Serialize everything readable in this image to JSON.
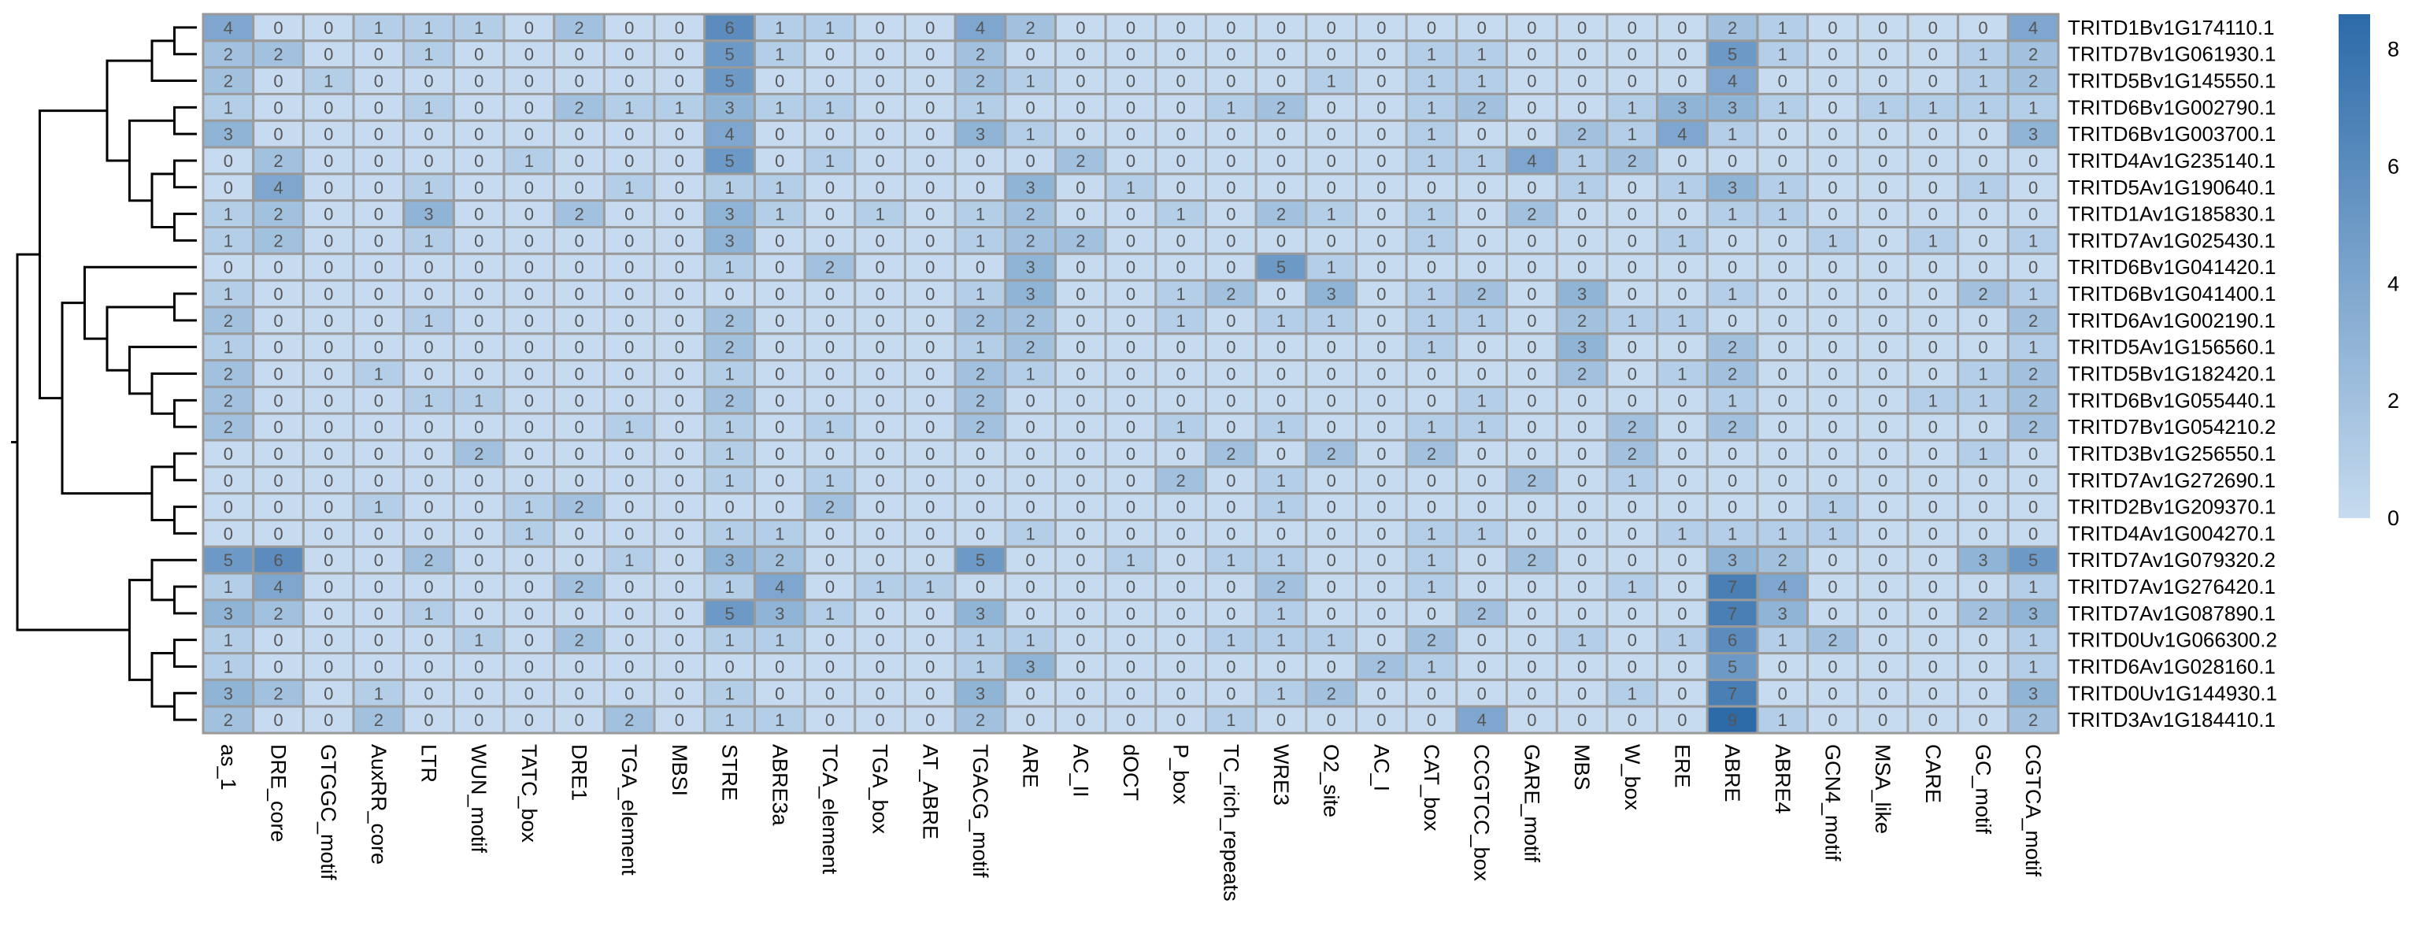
{
  "chart_data": {
    "type": "heatmap",
    "title": "",
    "xlabel": "",
    "ylabel": "",
    "rows": [
      "TRITD1Bv1G174110.1",
      "TRITD7Bv1G061930.1",
      "TRITD5Bv1G145550.1",
      "TRITD6Bv1G002790.1",
      "TRITD6Bv1G003700.1",
      "TRITD4Av1G235140.1",
      "TRITD5Av1G190640.1",
      "TRITD1Av1G185830.1",
      "TRITD7Av1G025430.1",
      "TRITD6Bv1G041420.1",
      "TRITD6Bv1G041400.1",
      "TRITD6Av1G002190.1",
      "TRITD5Av1G156560.1",
      "TRITD5Bv1G182420.1",
      "TRITD6Bv1G055440.1",
      "TRITD7Bv1G054210.2",
      "TRITD3Bv1G256550.1",
      "TRITD7Av1G272690.1",
      "TRITD2Bv1G209370.1",
      "TRITD4Av1G004270.1",
      "TRITD7Av1G079320.2",
      "TRITD7Av1G276420.1",
      "TRITD7Av1G087890.1",
      "TRITD0Uv1G066300.2",
      "TRITD6Av1G028160.1",
      "TRITD0Uv1G144930.1",
      "TRITD3Av1G184410.1"
    ],
    "columns": [
      "as_1",
      "DRE_core",
      "GTGGC_motif",
      "AuxRR_core",
      "LTR",
      "WUN_motif",
      "TATC_box",
      "DRE1",
      "TGA_element",
      "MBSI",
      "STRE",
      "ABRE3a",
      "TCA_element",
      "TGA_box",
      "AT_ABRE",
      "TGACG_motif",
      "ARE",
      "AC_II",
      "dOCT",
      "P_box",
      "TC_rich_repeats",
      "WRE3",
      "O2_site",
      "AC_I",
      "CAT_box",
      "CCGTCC_box",
      "GARE_motif",
      "MBS",
      "W_box",
      "ERE",
      "ABRE",
      "ABRE4",
      "GCN4_motif",
      "MSA_like",
      "CARE",
      "GC_motif",
      "CGTCA_motif"
    ],
    "values": [
      [
        4,
        0,
        0,
        1,
        1,
        1,
        0,
        2,
        0,
        0,
        6,
        1,
        1,
        0,
        0,
        4,
        2,
        0,
        0,
        0,
        0,
        0,
        0,
        0,
        0,
        0,
        0,
        0,
        0,
        0,
        2,
        1,
        0,
        0,
        0,
        0,
        4
      ],
      [
        2,
        2,
        0,
        0,
        1,
        0,
        0,
        0,
        0,
        0,
        5,
        1,
        0,
        0,
        0,
        2,
        0,
        0,
        0,
        0,
        0,
        0,
        0,
        0,
        1,
        1,
        0,
        0,
        0,
        0,
        5,
        1,
        0,
        0,
        0,
        1,
        2
      ],
      [
        2,
        0,
        1,
        0,
        0,
        0,
        0,
        0,
        0,
        0,
        5,
        0,
        0,
        0,
        0,
        2,
        1,
        0,
        0,
        0,
        0,
        0,
        1,
        0,
        1,
        1,
        0,
        0,
        0,
        0,
        4,
        0,
        0,
        0,
        0,
        1,
        2
      ],
      [
        1,
        0,
        0,
        0,
        1,
        0,
        0,
        2,
        1,
        1,
        3,
        1,
        1,
        0,
        0,
        1,
        0,
        0,
        0,
        0,
        1,
        2,
        0,
        0,
        1,
        2,
        0,
        0,
        1,
        3,
        3,
        1,
        0,
        1,
        1,
        1,
        1
      ],
      [
        3,
        0,
        0,
        0,
        0,
        0,
        0,
        0,
        0,
        0,
        4,
        0,
        0,
        0,
        0,
        3,
        1,
        0,
        0,
        0,
        0,
        0,
        0,
        0,
        1,
        0,
        0,
        2,
        1,
        4,
        1,
        0,
        0,
        0,
        0,
        0,
        3
      ],
      [
        0,
        2,
        0,
        0,
        0,
        0,
        1,
        0,
        0,
        0,
        5,
        0,
        1,
        0,
        0,
        0,
        0,
        2,
        0,
        0,
        0,
        0,
        0,
        0,
        1,
        1,
        4,
        1,
        2,
        0,
        0,
        0,
        0,
        0,
        0,
        0,
        0
      ],
      [
        0,
        4,
        0,
        0,
        1,
        0,
        0,
        0,
        1,
        0,
        1,
        1,
        0,
        0,
        0,
        0,
        3,
        0,
        1,
        0,
        0,
        0,
        0,
        0,
        0,
        0,
        0,
        1,
        0,
        1,
        3,
        1,
        0,
        0,
        0,
        1,
        0
      ],
      [
        1,
        2,
        0,
        0,
        3,
        0,
        0,
        2,
        0,
        0,
        3,
        1,
        0,
        1,
        0,
        1,
        2,
        0,
        0,
        1,
        0,
        2,
        1,
        0,
        1,
        0,
        2,
        0,
        0,
        0,
        1,
        1,
        0,
        0,
        0,
        0,
        0
      ],
      [
        1,
        2,
        0,
        0,
        1,
        0,
        0,
        0,
        0,
        0,
        3,
        0,
        0,
        0,
        0,
        1,
        2,
        2,
        0,
        0,
        0,
        0,
        0,
        0,
        1,
        0,
        0,
        0,
        0,
        1,
        0,
        0,
        1,
        0,
        1,
        0,
        1
      ],
      [
        0,
        0,
        0,
        0,
        0,
        0,
        0,
        0,
        0,
        0,
        1,
        0,
        2,
        0,
        0,
        0,
        3,
        0,
        0,
        0,
        0,
        5,
        1,
        0,
        0,
        0,
        0,
        0,
        0,
        0,
        0,
        0,
        0,
        0,
        0,
        0,
        0
      ],
      [
        1,
        0,
        0,
        0,
        0,
        0,
        0,
        0,
        0,
        0,
        0,
        0,
        0,
        0,
        0,
        1,
        3,
        0,
        0,
        1,
        2,
        0,
        3,
        0,
        1,
        2,
        0,
        3,
        0,
        0,
        1,
        0,
        0,
        0,
        0,
        2,
        1
      ],
      [
        2,
        0,
        0,
        0,
        1,
        0,
        0,
        0,
        0,
        0,
        2,
        0,
        0,
        0,
        0,
        2,
        2,
        0,
        0,
        1,
        0,
        1,
        1,
        0,
        1,
        1,
        0,
        2,
        1,
        1,
        0,
        0,
        0,
        0,
        0,
        0,
        2
      ],
      [
        1,
        0,
        0,
        0,
        0,
        0,
        0,
        0,
        0,
        0,
        2,
        0,
        0,
        0,
        0,
        1,
        2,
        0,
        0,
        0,
        0,
        0,
        0,
        0,
        1,
        0,
        0,
        3,
        0,
        0,
        2,
        0,
        0,
        0,
        0,
        0,
        1
      ],
      [
        2,
        0,
        0,
        1,
        0,
        0,
        0,
        0,
        0,
        0,
        1,
        0,
        0,
        0,
        0,
        2,
        1,
        0,
        0,
        0,
        0,
        0,
        0,
        0,
        0,
        0,
        0,
        2,
        0,
        1,
        2,
        0,
        0,
        0,
        0,
        1,
        2
      ],
      [
        2,
        0,
        0,
        0,
        1,
        1,
        0,
        0,
        0,
        0,
        2,
        0,
        0,
        0,
        0,
        2,
        0,
        0,
        0,
        0,
        0,
        0,
        0,
        0,
        0,
        1,
        0,
        0,
        0,
        0,
        1,
        0,
        0,
        0,
        1,
        1,
        2
      ],
      [
        2,
        0,
        0,
        0,
        0,
        0,
        0,
        0,
        1,
        0,
        1,
        0,
        1,
        0,
        0,
        2,
        0,
        0,
        0,
        1,
        0,
        1,
        0,
        0,
        1,
        1,
        0,
        0,
        2,
        0,
        2,
        0,
        0,
        0,
        0,
        0,
        2
      ],
      [
        0,
        0,
        0,
        0,
        0,
        2,
        0,
        0,
        0,
        0,
        1,
        0,
        0,
        0,
        0,
        0,
        0,
        0,
        0,
        0,
        2,
        0,
        2,
        0,
        2,
        0,
        0,
        0,
        2,
        0,
        0,
        0,
        0,
        0,
        0,
        1,
        0
      ],
      [
        0,
        0,
        0,
        0,
        0,
        0,
        0,
        0,
        0,
        0,
        1,
        0,
        1,
        0,
        0,
        0,
        0,
        0,
        0,
        2,
        0,
        1,
        0,
        0,
        0,
        0,
        2,
        0,
        1,
        0,
        0,
        0,
        0,
        0,
        0,
        0,
        0
      ],
      [
        0,
        0,
        0,
        1,
        0,
        0,
        1,
        2,
        0,
        0,
        0,
        0,
        2,
        0,
        0,
        0,
        0,
        0,
        0,
        0,
        0,
        1,
        0,
        0,
        0,
        0,
        0,
        0,
        0,
        0,
        0,
        0,
        1,
        0,
        0,
        0,
        0
      ],
      [
        0,
        0,
        0,
        0,
        0,
        0,
        1,
        0,
        0,
        0,
        1,
        1,
        0,
        0,
        0,
        0,
        1,
        0,
        0,
        0,
        0,
        0,
        0,
        0,
        1,
        1,
        0,
        0,
        0,
        1,
        1,
        1,
        1,
        0,
        0,
        0,
        0
      ],
      [
        5,
        6,
        0,
        0,
        2,
        0,
        0,
        0,
        1,
        0,
        3,
        2,
        0,
        0,
        0,
        5,
        0,
        0,
        1,
        0,
        1,
        1,
        0,
        0,
        1,
        0,
        2,
        0,
        0,
        0,
        3,
        2,
        0,
        0,
        0,
        3,
        5
      ],
      [
        1,
        4,
        0,
        0,
        0,
        0,
        0,
        2,
        0,
        0,
        1,
        4,
        0,
        1,
        1,
        0,
        0,
        0,
        0,
        0,
        0,
        2,
        0,
        0,
        1,
        0,
        0,
        0,
        1,
        0,
        7,
        4,
        0,
        0,
        0,
        0,
        1
      ],
      [
        3,
        2,
        0,
        0,
        1,
        0,
        0,
        0,
        0,
        0,
        5,
        3,
        1,
        0,
        0,
        3,
        0,
        0,
        0,
        0,
        0,
        1,
        0,
        0,
        0,
        2,
        0,
        0,
        0,
        0,
        7,
        3,
        0,
        0,
        0,
        2,
        3
      ],
      [
        1,
        0,
        0,
        0,
        0,
        1,
        0,
        2,
        0,
        0,
        1,
        1,
        0,
        0,
        0,
        1,
        1,
        0,
        0,
        0,
        1,
        1,
        1,
        0,
        2,
        0,
        0,
        1,
        0,
        1,
        6,
        1,
        2,
        0,
        0,
        0,
        1
      ],
      [
        1,
        0,
        0,
        0,
        0,
        0,
        0,
        0,
        0,
        0,
        0,
        0,
        0,
        0,
        0,
        1,
        3,
        0,
        0,
        0,
        0,
        0,
        0,
        2,
        1,
        0,
        0,
        0,
        0,
        0,
        5,
        0,
        0,
        0,
        0,
        0,
        1
      ],
      [
        3,
        2,
        0,
        1,
        0,
        0,
        0,
        0,
        0,
        0,
        1,
        0,
        0,
        0,
        0,
        3,
        0,
        0,
        0,
        0,
        0,
        1,
        2,
        0,
        0,
        0,
        0,
        0,
        1,
        0,
        7,
        0,
        0,
        0,
        0,
        0,
        3
      ],
      [
        2,
        0,
        0,
        2,
        0,
        0,
        0,
        0,
        2,
        0,
        1,
        1,
        0,
        0,
        0,
        2,
        0,
        0,
        0,
        0,
        1,
        0,
        0,
        0,
        0,
        4,
        0,
        0,
        0,
        0,
        9,
        1,
        0,
        0,
        0,
        0,
        2
      ]
    ],
    "colorbar": {
      "ticks": [
        0,
        2,
        4,
        6,
        8
      ],
      "min_color": "#c6dbef",
      "max_color": "#2c6aa8"
    },
    "dendrogram": "rows",
    "grid": true,
    "legend": "right"
  }
}
